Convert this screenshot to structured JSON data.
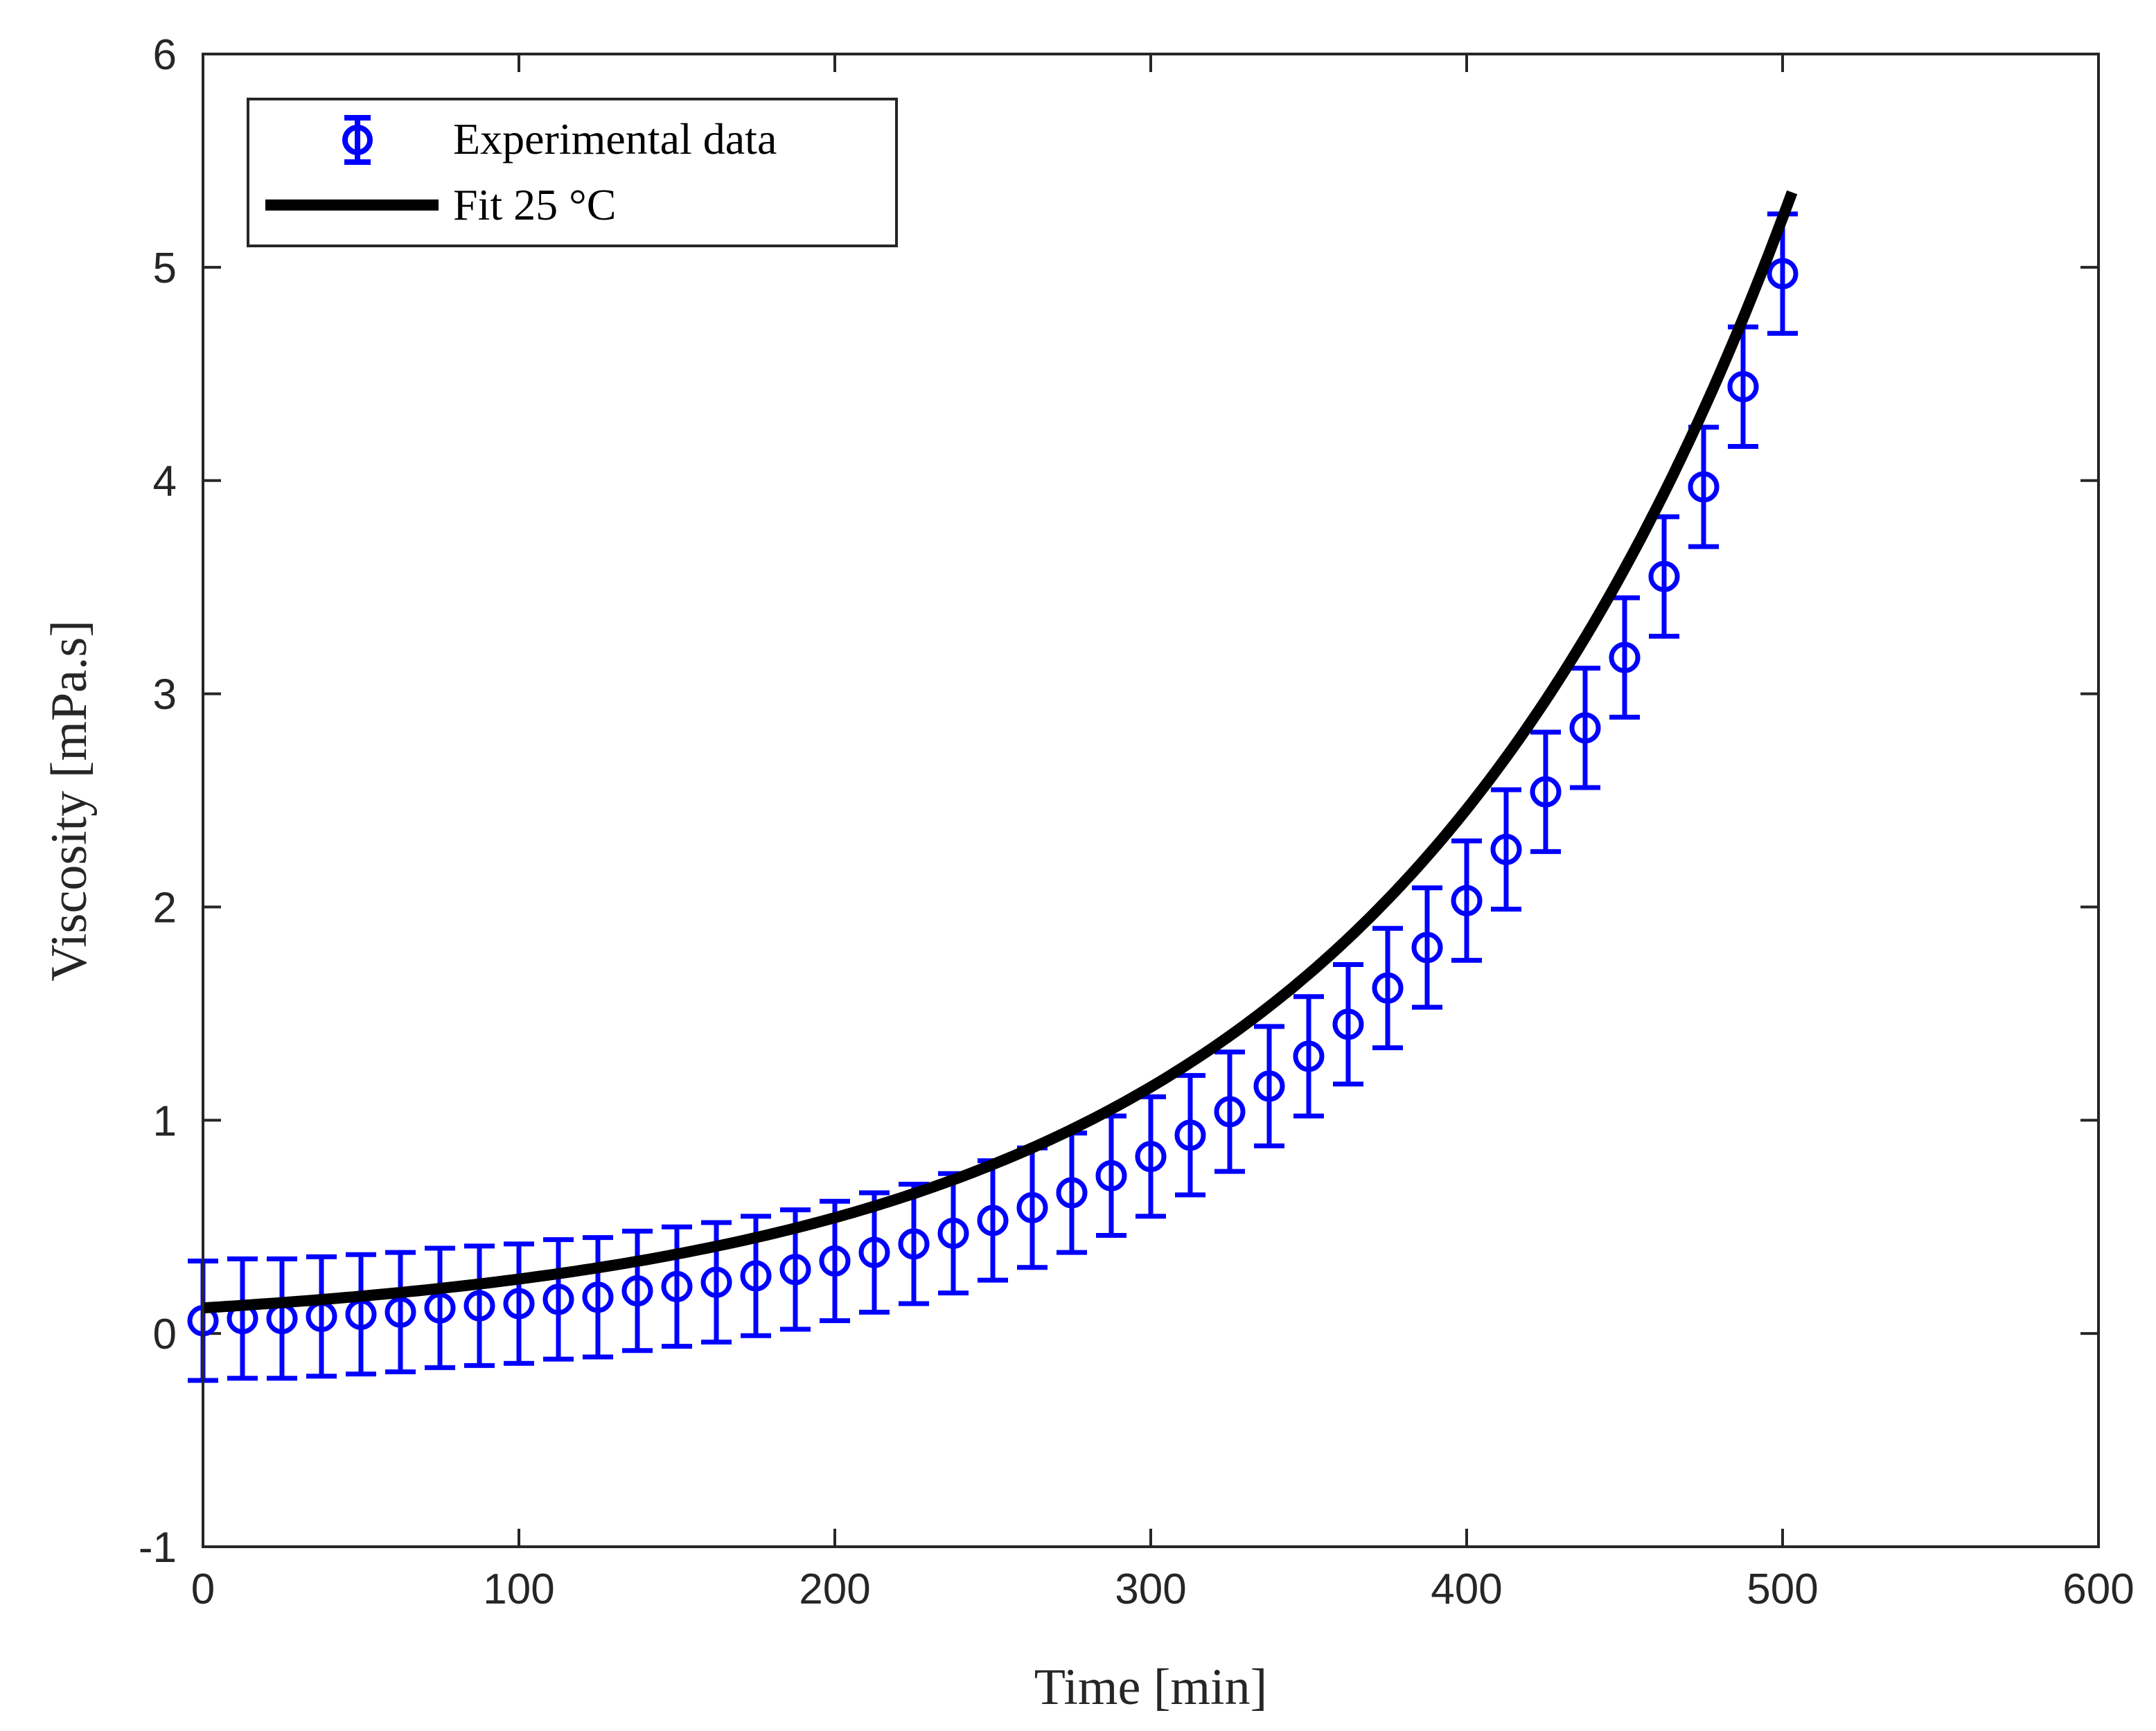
{
  "chart_data": {
    "type": "scatter",
    "title": "",
    "xlabel": "Time [min]",
    "ylabel": "Viscosity [mPa.s]",
    "xlim": [
      0,
      600
    ],
    "ylim": [
      -1,
      6
    ],
    "grid": false,
    "x_ticks": [
      0,
      100,
      200,
      300,
      400,
      500,
      600
    ],
    "y_ticks": [
      -1,
      0,
      1,
      2,
      3,
      4,
      5,
      6
    ],
    "x_tick_labels": [
      "0",
      "100",
      "200",
      "300",
      "400",
      "500",
      "600"
    ],
    "y_tick_labels": [
      "-1",
      "0",
      "1",
      "2",
      "3",
      "4",
      "5",
      "6"
    ],
    "legend_position": "top-left",
    "series": [
      {
        "name": "Experimental data",
        "style": "errorbar-circle",
        "color": "#0000ff",
        "error": 0.28,
        "x": [
          0,
          12.5,
          25,
          37.5,
          50,
          62.5,
          75,
          87.5,
          100,
          112.5,
          125,
          137.5,
          150,
          162.5,
          175,
          187.5,
          200,
          212.5,
          225,
          237.5,
          250,
          262.5,
          275,
          287.5,
          300,
          312.5,
          325,
          337.5,
          350,
          362.5,
          375,
          387.5,
          400,
          412.5,
          425,
          437.5,
          450,
          462.5,
          475,
          487.5,
          500
        ],
        "y": [
          0.06,
          0.07,
          0.07,
          0.08,
          0.09,
          0.1,
          0.12,
          0.13,
          0.14,
          0.16,
          0.17,
          0.2,
          0.22,
          0.24,
          0.27,
          0.3,
          0.34,
          0.38,
          0.42,
          0.47,
          0.53,
          0.59,
          0.66,
          0.74,
          0.83,
          0.93,
          1.04,
          1.16,
          1.3,
          1.45,
          1.62,
          1.81,
          2.03,
          2.27,
          2.54,
          2.84,
          3.17,
          3.55,
          3.97,
          4.44,
          4.97
        ]
      },
      {
        "name": "Fit 25 °C",
        "style": "line",
        "color": "#000000",
        "model": "y = a * exp(b * x)",
        "a": 0.12,
        "b": 0.00755,
        "x_range": [
          0,
          503
        ]
      }
    ]
  }
}
